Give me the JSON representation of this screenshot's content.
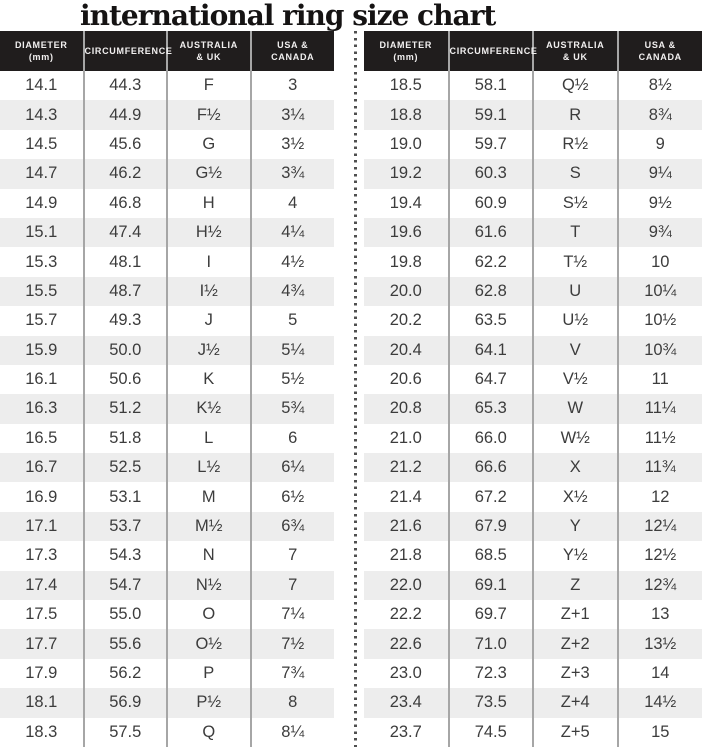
{
  "title": "international ring size chart",
  "colors": {
    "header_bg": "#201d1d",
    "header_text": "#f2f0f0",
    "row_stripe": "#ededed",
    "body_text": "#3c3c3c",
    "column_divider": "#a6a6a6",
    "dotted_divider": "#4f4f4f"
  },
  "chart_data": {
    "type": "table",
    "title": "international ring size chart",
    "column_headers": [
      [
        "DIAMETER",
        "(mm)"
      ],
      [
        "CIRCUMFERENCE"
      ],
      [
        "AUSTRALIA",
        "& UK"
      ],
      [
        "USA &",
        "CANADA"
      ]
    ],
    "tables": [
      {
        "position": "left",
        "rows": [
          [
            "14.1",
            "44.3",
            "F",
            "3"
          ],
          [
            "14.3",
            "44.9",
            "F½",
            "3¼"
          ],
          [
            "14.5",
            "45.6",
            "G",
            "3½"
          ],
          [
            "14.7",
            "46.2",
            "G½",
            "3¾"
          ],
          [
            "14.9",
            "46.8",
            "H",
            "4"
          ],
          [
            "15.1",
            "47.4",
            "H½",
            "4¼"
          ],
          [
            "15.3",
            "48.1",
            "I",
            "4½"
          ],
          [
            "15.5",
            "48.7",
            "I½",
            "4¾"
          ],
          [
            "15.7",
            "49.3",
            "J",
            "5"
          ],
          [
            "15.9",
            "50.0",
            "J½",
            "5¼"
          ],
          [
            "16.1",
            "50.6",
            "K",
            "5½"
          ],
          [
            "16.3",
            "51.2",
            "K½",
            "5¾"
          ],
          [
            "16.5",
            "51.8",
            "L",
            "6"
          ],
          [
            "16.7",
            "52.5",
            "L½",
            "6¼"
          ],
          [
            "16.9",
            "53.1",
            "M",
            "6½"
          ],
          [
            "17.1",
            "53.7",
            "M½",
            "6¾"
          ],
          [
            "17.3",
            "54.3",
            "N",
            "7"
          ],
          [
            "17.4",
            "54.7",
            "N½",
            "7"
          ],
          [
            "17.5",
            "55.0",
            "O",
            "7¼"
          ],
          [
            "17.7",
            "55.6",
            "O½",
            "7½"
          ],
          [
            "17.9",
            "56.2",
            "P",
            "7¾"
          ],
          [
            "18.1",
            "56.9",
            "P½",
            "8"
          ],
          [
            "18.3",
            "57.5",
            "Q",
            "8¼"
          ]
        ]
      },
      {
        "position": "right",
        "rows": [
          [
            "18.5",
            "58.1",
            "Q½",
            "8½"
          ],
          [
            "18.8",
            "59.1",
            "R",
            "8¾"
          ],
          [
            "19.0",
            "59.7",
            "R½",
            "9"
          ],
          [
            "19.2",
            "60.3",
            "S",
            "9¼"
          ],
          [
            "19.4",
            "60.9",
            "S½",
            "9½"
          ],
          [
            "19.6",
            "61.6",
            "T",
            "9¾"
          ],
          [
            "19.8",
            "62.2",
            "T½",
            "10"
          ],
          [
            "20.0",
            "62.8",
            "U",
            "10¼"
          ],
          [
            "20.2",
            "63.5",
            "U½",
            "10½"
          ],
          [
            "20.4",
            "64.1",
            "V",
            "10¾"
          ],
          [
            "20.6",
            "64.7",
            "V½",
            "11"
          ],
          [
            "20.8",
            "65.3",
            "W",
            "11¼"
          ],
          [
            "21.0",
            "66.0",
            "W½",
            "11½"
          ],
          [
            "21.2",
            "66.6",
            "X",
            "11¾"
          ],
          [
            "21.4",
            "67.2",
            "X½",
            "12"
          ],
          [
            "21.6",
            "67.9",
            "Y",
            "12¼"
          ],
          [
            "21.8",
            "68.5",
            "Y½",
            "12½"
          ],
          [
            "22.0",
            "69.1",
            "Z",
            "12¾"
          ],
          [
            "22.2",
            "69.7",
            "Z+1",
            "13"
          ],
          [
            "22.6",
            "71.0",
            "Z+2",
            "13½"
          ],
          [
            "23.0",
            "72.3",
            "Z+3",
            "14"
          ],
          [
            "23.4",
            "73.5",
            "Z+4",
            "14½"
          ],
          [
            "23.7",
            "74.5",
            "Z+5",
            "15"
          ]
        ]
      }
    ]
  }
}
